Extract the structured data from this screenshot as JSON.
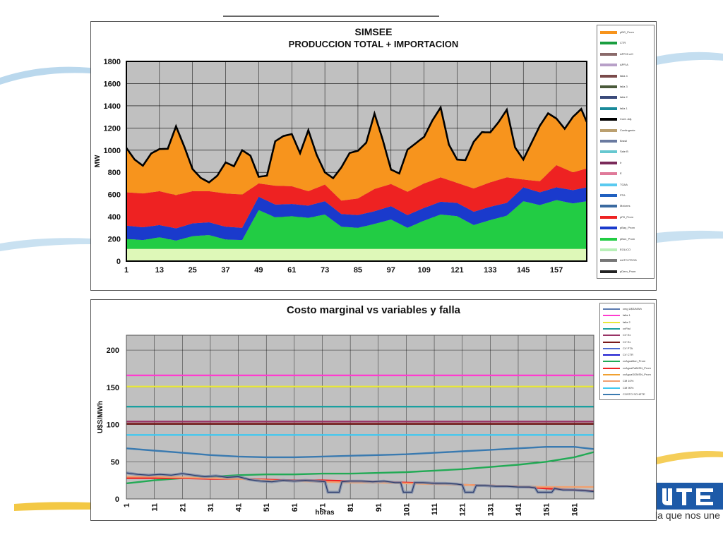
{
  "slogan": "la que nos une",
  "chart_data": [
    {
      "type": "area",
      "title": "SIMSEE",
      "subtitle": "PRODUCCION TOTAL + IMPORTACION",
      "ylabel": "MW",
      "ylim": [
        0,
        1800
      ],
      "yticks": [
        0,
        200,
        400,
        600,
        800,
        1000,
        1200,
        1400,
        1600,
        1800
      ],
      "xlim": [
        1,
        168
      ],
      "xticks": [
        1,
        13,
        25,
        37,
        49,
        61,
        73,
        85,
        97,
        109,
        121,
        133,
        145,
        157
      ],
      "grid": true,
      "legend_placement": "right",
      "legend": [
        "pBG_Prom",
        "CTR",
        "APR B c/C",
        "APR A",
        "falla 4",
        "falla 3",
        "falla 2",
        "falla 1",
        "Cont. Adj.",
        "Contingente",
        "Brasil",
        "Sale B",
        "Ir",
        "E",
        "TGAA",
        "PTA",
        "Motores",
        "pPtI_Prom",
        "pBay_Prom",
        "pBon_Prom",
        "EOLICO",
        "AUTO PROD",
        "pDem_Prom"
      ],
      "legend_colors": [
        "#f7941d",
        "#1a9e3f",
        "#8a6a6a",
        "#b8a0c8",
        "#7a4a4a",
        "#4a5a3a",
        "#3a4a7a",
        "#1a8a9a",
        "#000000",
        "#bba070",
        "#6a7aa0",
        "#66c8d0",
        "#7a2a5a",
        "#e07a9a",
        "#5acaf0",
        "#2060c0",
        "#3a6aa0",
        "#ee2222",
        "#1a3acc",
        "#22cc44",
        "#b8f0b8",
        "#777777",
        "#222222"
      ],
      "series": [
        {
          "name": "pBon_Prom",
          "x": [
            1,
            7,
            13,
            19,
            25,
            31,
            37,
            43,
            49,
            55,
            61,
            67,
            73,
            79,
            85,
            91,
            97,
            103,
            109,
            115,
            121,
            127,
            133,
            139,
            145,
            151,
            157,
            163,
            168
          ],
          "values": [
            200,
            190,
            215,
            185,
            225,
            235,
            195,
            190,
            460,
            395,
            405,
            390,
            420,
            310,
            300,
            335,
            375,
            300,
            365,
            420,
            405,
            325,
            370,
            410,
            540,
            505,
            550,
            520,
            540
          ]
        },
        {
          "name": "pBay_Prom",
          "x": [
            1,
            7,
            13,
            19,
            25,
            31,
            37,
            43,
            49,
            55,
            61,
            67,
            73,
            79,
            85,
            91,
            97,
            103,
            109,
            115,
            121,
            127,
            133,
            139,
            145,
            151,
            157,
            163,
            168
          ],
          "values": [
            120,
            115,
            110,
            110,
            115,
            115,
            115,
            110,
            120,
            115,
            110,
            110,
            120,
            115,
            115,
            115,
            120,
            115,
            115,
            115,
            120,
            120,
            120,
            115,
            125,
            115,
            115,
            120,
            125
          ]
        },
        {
          "name": "pPtI_Prom",
          "x": [
            1,
            7,
            13,
            19,
            25,
            31,
            37,
            43,
            49,
            55,
            61,
            67,
            73,
            79,
            85,
            91,
            97,
            103,
            109,
            115,
            121,
            127,
            133,
            139,
            145,
            151,
            157,
            163,
            168
          ],
          "values": [
            300,
            305,
            305,
            300,
            290,
            280,
            300,
            300,
            120,
            170,
            160,
            130,
            150,
            120,
            150,
            200,
            200,
            210,
            220,
            220,
            180,
            210,
            220,
            230,
            70,
            100,
            200,
            160,
            170
          ]
        },
        {
          "name": "pBG_Prom",
          "x": [
            1,
            4,
            7,
            10,
            13,
            16,
            19,
            22,
            25,
            28,
            31,
            34,
            37,
            40,
            43,
            46,
            49,
            52,
            55,
            58,
            61,
            64,
            67,
            70,
            73,
            76,
            79,
            82,
            85,
            88,
            91,
            94,
            97,
            100,
            103,
            106,
            109,
            112,
            115,
            118,
            121,
            124,
            127,
            130,
            133,
            136,
            139,
            142,
            145,
            148,
            151,
            154,
            157,
            160,
            163,
            166,
            168
          ],
          "values": [
            400,
            300,
            250,
            350,
            380,
            400,
            620,
            420,
            200,
            120,
            80,
            150,
            280,
            250,
            400,
            300,
            60,
            80,
            400,
            450,
            470,
            320,
            550,
            300,
            110,
            130,
            300,
            420,
            430,
            460,
            680,
            420,
            130,
            130,
            380,
            400,
            420,
            540,
            630,
            320,
            210,
            230,
            420,
            480,
            450,
            520,
            610,
            280,
            180,
            340,
            500,
            540,
            420,
            360,
            500,
            550,
            420
          ]
        }
      ]
    },
    {
      "type": "line",
      "title": "Costo marginal vs variables y falla",
      "xlabel": "horas",
      "ylabel": "U$S/MWh",
      "ylim": [
        0,
        220
      ],
      "yticks": [
        0,
        50,
        100,
        150,
        200
      ],
      "xlim": [
        1,
        168
      ],
      "xticks": [
        1,
        11,
        21,
        31,
        41,
        51,
        61,
        71,
        81,
        91,
        101,
        111,
        121,
        131,
        141,
        151,
        161
      ],
      "grid": true,
      "legend_placement": "right",
      "legend": [
        "cmg U$S/MWh",
        "falla 1",
        "falla 2",
        "cvFtal",
        "CV Ex",
        "CV Ex",
        "CV PTA",
        "CV CTR",
        "cvAguaBon_Prom",
        "cvAguaPalMSN_Prom",
        "cvAguaSGMSN_Prom",
        "CM 10%",
        "CM 90%",
        "COSTO SCHETE"
      ],
      "legend_colors": [
        "#5a7ab0",
        "#ff3ccf",
        "#e8e83a",
        "#1aa0a0",
        "#993366",
        "#7a1a1a",
        "#4a6ad0",
        "#1a1ad0",
        "#22aa55",
        "#ee2222",
        "#f0a030",
        "#f0a070",
        "#40c8f0",
        "#3a7ab0"
      ],
      "series": [
        {
          "name": "falla 1",
          "x": [
            1,
            168
          ],
          "values": [
            166,
            166
          ]
        },
        {
          "name": "falla 2",
          "x": [
            1,
            168
          ],
          "values": [
            151,
            151
          ]
        },
        {
          "name": "cvFtal",
          "x": [
            1,
            168
          ],
          "values": [
            124,
            124
          ]
        },
        {
          "name": "CV Ex",
          "x": [
            1,
            168
          ],
          "values": [
            104,
            104
          ]
        },
        {
          "name": "CV Ex",
          "x": [
            1,
            168
          ],
          "values": [
            101,
            101
          ]
        },
        {
          "name": "CM 90%",
          "x": [
            1,
            168
          ],
          "values": [
            86,
            86
          ]
        },
        {
          "name": "COSTO SCHETE",
          "x": [
            1,
            11,
            21,
            31,
            41,
            51,
            61,
            71,
            81,
            91,
            101,
            111,
            121,
            131,
            141,
            151,
            161,
            168
          ],
          "values": [
            68,
            65,
            62,
            59,
            57,
            56,
            56,
            57,
            58,
            59,
            60,
            62,
            64,
            66,
            68,
            70,
            70,
            67
          ]
        },
        {
          "name": "cvAguaBon_Prom",
          "x": [
            1,
            11,
            21,
            31,
            41,
            51,
            61,
            71,
            81,
            91,
            101,
            111,
            121,
            131,
            141,
            151,
            161,
            168
          ],
          "values": [
            21,
            25,
            28,
            30,
            32,
            33,
            33,
            34,
            34,
            35,
            36,
            38,
            40,
            43,
            46,
            50,
            56,
            63
          ]
        },
        {
          "name": "cvAguaPalMSN_Prom",
          "x": [
            1,
            11,
            21,
            31,
            41,
            51,
            61,
            71,
            81,
            91,
            101,
            111,
            121,
            131,
            141,
            151,
            161,
            168
          ],
          "values": [
            28,
            28,
            28,
            27,
            27,
            26,
            25,
            25,
            24,
            23,
            22,
            21,
            19,
            18,
            17,
            14,
            12,
            11
          ]
        },
        {
          "name": "CM 10%",
          "x": [
            1,
            11,
            21,
            31,
            41,
            51,
            61,
            71,
            81,
            91,
            101,
            111,
            121,
            131,
            141,
            151,
            161,
            168
          ],
          "values": [
            30,
            30,
            29,
            28,
            27,
            25,
            24,
            23,
            22,
            22,
            21,
            20,
            19,
            18,
            17,
            16,
            16,
            16
          ]
        },
        {
          "name": "cmg U$S/MWh",
          "x": [
            1,
            5,
            9,
            13,
            17,
            21,
            25,
            29,
            33,
            37,
            41,
            45,
            49,
            53,
            57,
            61,
            65,
            69,
            72,
            73,
            77,
            78,
            81,
            85,
            89,
            93,
            97,
            99,
            100,
            103,
            104,
            107,
            111,
            115,
            119,
            121,
            122,
            125,
            126,
            129,
            133,
            137,
            141,
            145,
            147,
            148,
            153,
            154,
            157,
            161,
            165,
            168
          ],
          "values": [
            35,
            33,
            32,
            33,
            32,
            34,
            32,
            30,
            31,
            29,
            30,
            26,
            24,
            23,
            25,
            24,
            25,
            24,
            23,
            9,
            9,
            23,
            24,
            24,
            23,
            24,
            22,
            22,
            9,
            9,
            22,
            22,
            21,
            21,
            20,
            19,
            9,
            9,
            18,
            18,
            17,
            17,
            16,
            16,
            15,
            9,
            9,
            14,
            12,
            12,
            11,
            10
          ]
        }
      ]
    }
  ]
}
